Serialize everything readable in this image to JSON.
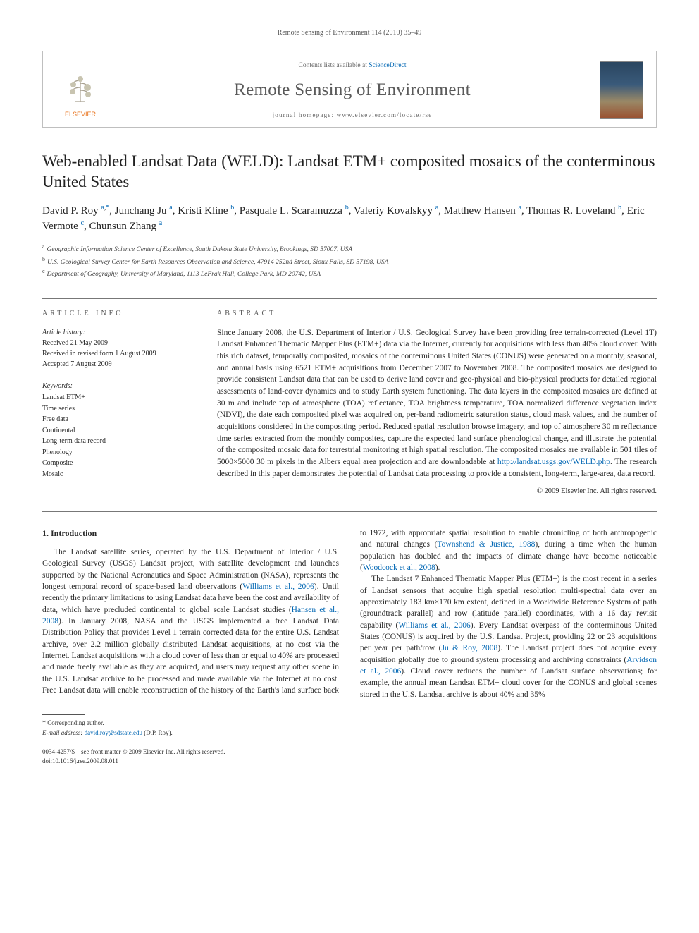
{
  "running_head": "Remote Sensing of Environment 114 (2010) 35–49",
  "header": {
    "contents_text": "Contents lists available at ",
    "contents_link": "ScienceDirect",
    "journal_name": "Remote Sensing of Environment",
    "homepage_label": "journal homepage: www.elsevier.com/locate/rse",
    "publisher_logo_text": "ELSEVIER"
  },
  "title": "Web-enabled Landsat Data (WELD): Landsat ETM+ composited mosaics of the conterminous United States",
  "authors_html": "David P. Roy <sup><a href='#'>a</a>,<a href='#'>*</a></sup>, Junchang Ju <sup><a href='#'>a</a></sup>, Kristi Kline <sup><a href='#'>b</a></sup>, Pasquale L. Scaramuzza <sup><a href='#'>b</a></sup>, Valeriy Kovalskyy <sup><a href='#'>a</a></sup>, Matthew Hansen <sup><a href='#'>a</a></sup>, Thomas R. Loveland <sup><a href='#'>b</a></sup>, Eric Vermote <sup><a href='#'>c</a></sup>, Chunsun Zhang <sup><a href='#'>a</a></sup>",
  "affiliations": [
    {
      "sup": "a",
      "text": "Geographic Information Science Center of Excellence, South Dakota State University, Brookings, SD 57007, USA"
    },
    {
      "sup": "b",
      "text": "U.S. Geological Survey Center for Earth Resources Observation and Science, 47914 252nd Street, Sioux Falls, SD 57198, USA"
    },
    {
      "sup": "c",
      "text": "Department of Geography, University of Maryland, 1113 LeFrak Hall, College Park, MD 20742, USA"
    }
  ],
  "article_info": {
    "label": "ARTICLE INFO",
    "history_label": "Article history:",
    "history": [
      "Received 21 May 2009",
      "Received in revised form 1 August 2009",
      "Accepted 7 August 2009"
    ],
    "keywords_label": "Keywords:",
    "keywords": [
      "Landsat ETM+",
      "Time series",
      "Free data",
      "Continental",
      "Long-term data record",
      "Phenology",
      "Composite",
      "Mosaic"
    ]
  },
  "abstract": {
    "label": "ABSTRACT",
    "text": "Since January 2008, the U.S. Department of Interior / U.S. Geological Survey have been providing free terrain-corrected (Level 1T) Landsat Enhanced Thematic Mapper Plus (ETM+) data via the Internet, currently for acquisitions with less than 40% cloud cover. With this rich dataset, temporally composited, mosaics of the conterminous United States (CONUS) were generated on a monthly, seasonal, and annual basis using 6521 ETM+ acquisitions from December 2007 to November 2008. The composited mosaics are designed to provide consistent Landsat data that can be used to derive land cover and geo-physical and bio-physical products for detailed regional assessments of land-cover dynamics and to study Earth system functioning. The data layers in the composited mosaics are defined at 30 m and include top of atmosphere (TOA) reflectance, TOA brightness temperature, TOA normalized difference vegetation index (NDVI), the date each composited pixel was acquired on, per-band radiometric saturation status, cloud mask values, and the number of acquisitions considered in the compositing period. Reduced spatial resolution browse imagery, and top of atmosphere 30 m reflectance time series extracted from the monthly composites, capture the expected land surface phenological change, and illustrate the potential of the composited mosaic data for terrestrial monitoring at high spatial resolution. The composited mosaics are available in 501 tiles of 5000×5000 30 m pixels in the Albers equal area projection and are downloadable at ",
    "link_text": "http://landsat.usgs.gov/WELD.php",
    "text2": ". The research described in this paper demonstrates the potential of Landsat data processing to provide a consistent, long-term, large-area, data record.",
    "copyright": "© 2009 Elsevier Inc. All rights reserved."
  },
  "intro": {
    "heading": "1. Introduction",
    "p1a": "The Landsat satellite series, operated by the U.S. Department of Interior / U.S. Geological Survey (USGS) Landsat project, with satellite development and launches supported by the National Aeronautics and Space Administration (NASA), represents the longest temporal record of space-based land observations (",
    "c1": "Williams et al., 2006",
    "p1b": "). Until recently the primary limitations to using Landsat data have been the cost and availability of data, which have precluded continental to global scale Landsat studies (",
    "c2": "Hansen et al., 2008",
    "p1c": "). In January 2008, NASA and the USGS implemented a free Landsat Data Distribution Policy that provides Level 1 terrain corrected data for the entire U.S. Landsat archive, over 2.2 million globally distributed Landsat acquisitions, at no cost via the Internet. Landsat acquisitions with a cloud cover of less than or equal to 40% are processed and made freely available as they are acquired, and users may request any other scene in the U.S. Landsat archive to be processed and made available via the Internet at no cost. Free Landsat data will enable reconstruction of the history of the Earth's land surface back to 1972, with appropriate spatial resolution to enable chronicling of both anthropogenic and natural changes (",
    "c3": "Townshend & Justice, 1988",
    "p1d": "), during a time when the human population has doubled and the impacts of climate change have become noticeable (",
    "c4": "Woodcock et al., 2008",
    "p1e": ").",
    "p2a": "The Landsat 7 Enhanced Thematic Mapper Plus (ETM+) is the most recent in a series of Landsat sensors that acquire high spatial resolution multi-spectral data over an approximately 183 km×170 km extent, defined in a Worldwide Reference System of path (groundtrack parallel) and row (latitude parallel) coordinates, with a 16 day revisit capability (",
    "c5": "Williams et al., 2006",
    "p2b": "). Every Landsat overpass of the conterminous United States (CONUS) is acquired by the U.S. Landsat Project, providing 22 or 23 acquisitions per year per path/row (",
    "c6": "Ju & Roy, 2008",
    "p2c": "). The Landsat project does not acquire every acquisition globally due to ground system processing and archiving constraints (",
    "c7": "Arvidson et al., 2006",
    "p2d": "). Cloud cover reduces the number of Landsat surface observations; for example, the annual mean Landsat ETM+ cloud cover for the CONUS and global scenes stored in the U.S. Landsat archive is about 40% and 35%"
  },
  "footnote": {
    "corr_label": "Corresponding author.",
    "email_label": "E-mail address:",
    "email": "david.roy@sdstate.edu",
    "email_who": "(D.P. Roy)."
  },
  "bottom": {
    "left1": "0034-4257/$ – see front matter © 2009 Elsevier Inc. All rights reserved.",
    "left2": "doi:10.1016/j.rse.2009.08.011"
  },
  "colors": {
    "link": "#0066b3",
    "border": "#bfbfbf",
    "text": "#2a2a2a",
    "logo": "#e8711a"
  }
}
